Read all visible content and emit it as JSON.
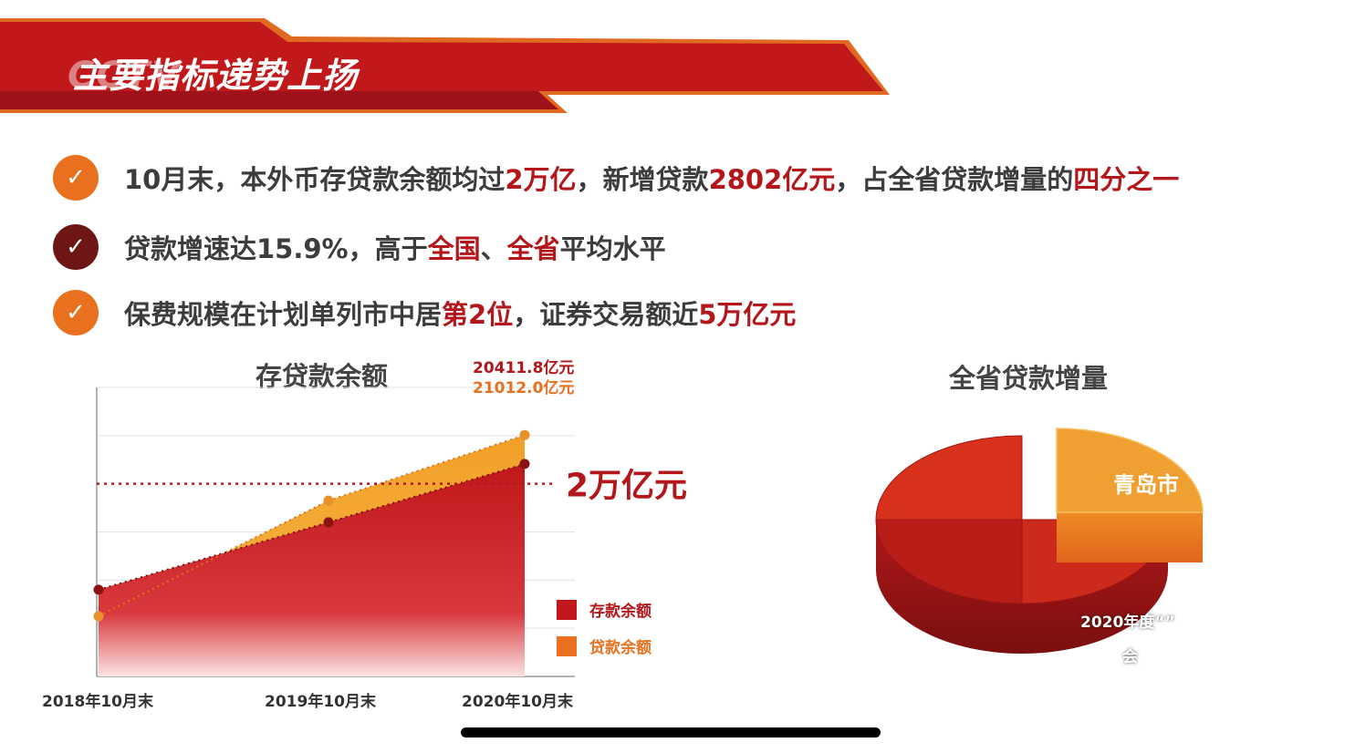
{
  "header": {
    "title": "主要指标递势上扬",
    "watermark": "CCTV",
    "colors": {
      "red": "#c0181b",
      "dark_red": "#8f1313",
      "orange": "#e8701e"
    }
  },
  "bullets": [
    {
      "icon": "check-icon",
      "color": "#e8701e",
      "parts": [
        {
          "t": "10月末，本外币存贷款余额均过"
        },
        {
          "t": "2万亿",
          "h": true
        },
        {
          "t": "，新增贷款"
        },
        {
          "t": "2802亿元",
          "h": true
        },
        {
          "t": "，占全省贷款增量的"
        },
        {
          "t": "四分之一",
          "h": true
        }
      ]
    },
    {
      "icon": "check-icon",
      "color": "#6e1616",
      "parts": [
        {
          "t": "贷款增速达15.9%，高于"
        },
        {
          "t": "全国",
          "h": true
        },
        {
          "t": "、"
        },
        {
          "t": "全省",
          "h": true
        },
        {
          "t": "平均水平"
        }
      ]
    },
    {
      "icon": "check-icon",
      "color": "#e8701e",
      "parts": [
        {
          "t": "保费规模在计划单列市中居"
        },
        {
          "t": "第2位",
          "h": true
        },
        {
          "t": "，证券交易额近"
        },
        {
          "t": "5万亿元",
          "h": true
        }
      ]
    }
  ],
  "chart_data": [
    {
      "type": "area",
      "title": "存贷款余额",
      "categories": [
        "2018年10月末",
        "2019年10月末",
        "2020年10月末"
      ],
      "series": [
        {
          "name": "存款余额",
          "color": "#c0181b",
          "values": [
            17800,
            19200,
            20411.8
          ]
        },
        {
          "name": "贷款余额",
          "color": "#e8701e",
          "values": [
            17250,
            19650,
            21012.0
          ]
        }
      ],
      "annotations": [
        "20411.8亿元",
        "21012.0亿元"
      ],
      "reference_line": {
        "value": 20000,
        "label": "2万亿元"
      },
      "ylim": [
        16000,
        22000
      ],
      "grid": true,
      "legend": "bottom-right"
    },
    {
      "type": "pie",
      "title": "全省贷款增量",
      "slices": [
        {
          "label": "青岛市",
          "value": 25,
          "color": "#f0a030"
        },
        {
          "label": "",
          "value": 25,
          "color": "#cc2a1a"
        },
        {
          "label": "",
          "value": 25,
          "color": "#b81d18"
        },
        {
          "label": "",
          "value": 25,
          "color": "#d8321c"
        }
      ],
      "notes": [
        "2020年度“”",
        "会"
      ]
    }
  ]
}
